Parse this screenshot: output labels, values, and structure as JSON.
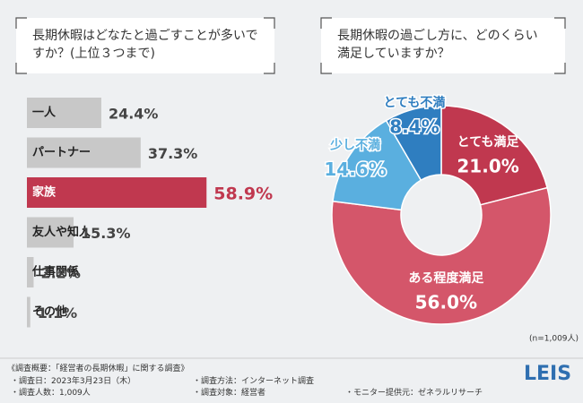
{
  "chart_data": [
    {
      "type": "bar",
      "orientation": "horizontal",
      "title": "長期休暇はどなたと過ごすことが多いですか？(上位３つまで)",
      "categories": [
        "一人",
        "パートナー",
        "家族",
        "友人や知人",
        "仕事関係",
        "その他"
      ],
      "values": [
        24.4,
        37.3,
        58.9,
        15.3,
        2.2,
        1.1
      ],
      "value_labels": [
        "24.4%",
        "37.3%",
        "58.9%",
        "15.3%",
        "2.2%",
        "1.1%"
      ],
      "colors": [
        "#c8c8c8",
        "#c8c8c8",
        "#c0384f",
        "#c8c8c8",
        "#c8c8c8",
        "#c8c8c8"
      ]
    },
    {
      "type": "pie",
      "title": "長期休暇の過ごし方に、どのくらい満足していますか？",
      "categories": [
        "とても満足",
        "ある程度満足",
        "少し不満",
        "とても不満"
      ],
      "values": [
        21.0,
        56.0,
        14.6,
        8.4
      ],
      "value_labels": [
        "21.0%",
        "56.0%",
        "14.6%",
        "8.4%"
      ],
      "colors": [
        "#c0384f",
        "#d4566a",
        "#5aafdf",
        "#2f7ec0"
      ],
      "note": "(n=1,009人)"
    }
  ],
  "survey": {
    "heading": "《調査概要：「経営者の長期休暇」に関する調査》",
    "items": [
      "・調査日：2023年3月23日（木）",
      "・調査方法：インターネット調査",
      "・調査人数：1,009人",
      "・調査対象：経営者",
      "・モニター提供元：ゼネラルリサーチ"
    ]
  },
  "logo": "LEIS"
}
